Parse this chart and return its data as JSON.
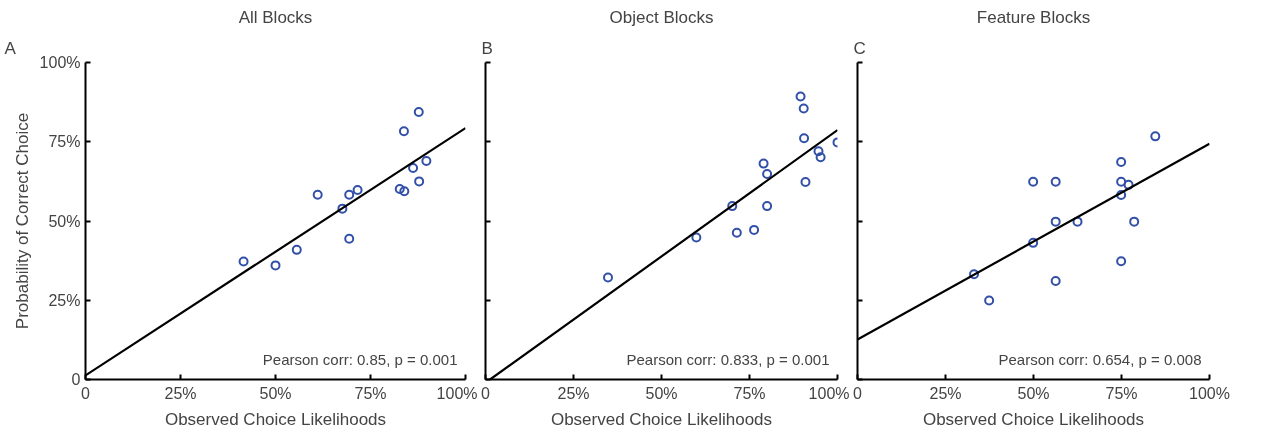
{
  "chart_data": [
    {
      "type": "scatter",
      "title": "All Blocks",
      "xlabel": "Observed Choice Likelihoods",
      "ylabel": "Probability of Correct Choice",
      "annotations": [
        "A",
        "Pearson corr: 0.85, p = 0.001"
      ],
      "xlim": [
        0,
        100
      ],
      "ylim": [
        0,
        100
      ],
      "xticks": [
        {
          "value": 0,
          "label": "0"
        },
        {
          "value": 25,
          "label": "25%"
        },
        {
          "value": 50,
          "label": "50%"
        },
        {
          "value": 75,
          "label": "75%"
        },
        {
          "value": 100,
          "label": "100%"
        }
      ],
      "yticks": [
        {
          "value": 0,
          "label": "0"
        },
        {
          "value": 25,
          "label": "25%"
        },
        {
          "value": 50,
          "label": "50%"
        },
        {
          "value": 75,
          "label": "75%"
        },
        {
          "value": 100,
          "label": "100%"
        }
      ],
      "marker": "circle",
      "series": [
        {
          "color": "#3350a8",
          "x": [
            41.6,
            50.0,
            55.6,
            61.1,
            67.6,
            69.4,
            71.6,
            69.4,
            82.7,
            83.9,
            83.8,
            87.7,
            86.2,
            89.7,
            87.8
          ],
          "values": [
            37.2,
            36.0,
            40.9,
            58.3,
            53.9,
            58.3,
            59.8,
            44.4,
            60.1,
            59.4,
            78.3,
            84.4,
            66.7,
            68.9,
            62.5
          ]
        },
        {
          "type": "line",
          "color": "#000000",
          "line_style": "solid",
          "marker": "none",
          "x": [
            0,
            100
          ],
          "values": [
            1.3,
            79.3
          ]
        }
      ]
    },
    {
      "type": "scatter",
      "title": "Object Blocks",
      "xlabel": "Observed Choice Likelihoods",
      "annotations": [
        "B",
        "Pearson corr: 0.833, p = 0.001"
      ],
      "xlim": [
        0,
        100
      ],
      "ylim": [
        0,
        100
      ],
      "tick_labels": "x",
      "xticks": [
        {
          "value": 0,
          "label": "0"
        },
        {
          "value": 25,
          "label": "25%"
        },
        {
          "value": 50,
          "label": "50%"
        },
        {
          "value": 75,
          "label": "75%"
        },
        {
          "value": 100,
          "label": "100%"
        }
      ],
      "yticks": [
        {
          "value": 0,
          "label": null
        },
        {
          "value": 25,
          "label": null
        },
        {
          "value": 50,
          "label": null
        },
        {
          "value": 75,
          "label": null
        },
        {
          "value": 100,
          "label": null
        }
      ],
      "marker": "circle",
      "series": [
        {
          "color": "#3350a8",
          "x": [
            34.8,
            59.9,
            70.1,
            71.4,
            76.3,
            79.0,
            80.0,
            80.0,
            89.5,
            90.4,
            90.5,
            90.9,
            94.6,
            95.2,
            100
          ],
          "values": [
            32.2,
            44.8,
            54.7,
            46.3,
            47.2,
            68.1,
            64.8,
            54.7,
            89.3,
            85.5,
            76.1,
            62.3,
            72.0,
            70.1,
            74.8
          ]
        },
        {
          "type": "line",
          "color": "#000000",
          "line_style": "solid",
          "marker": "none",
          "x": [
            1.3,
            100
          ],
          "values": [
            0,
            78.7
          ]
        }
      ]
    },
    {
      "type": "scatter",
      "title": "Feature Blocks",
      "xlabel": "Observed Choice Likelihoods",
      "annotations": [
        "C",
        "Pearson corr: 0.654, p = 0.008"
      ],
      "xlim": [
        0,
        100
      ],
      "ylim": [
        0,
        100
      ],
      "tick_labels": "x",
      "xticks": [
        {
          "value": 0,
          "label": "0"
        },
        {
          "value": 25,
          "label": "25%"
        },
        {
          "value": 50,
          "label": "50%"
        },
        {
          "value": 75,
          "label": "75%"
        },
        {
          "value": 100,
          "label": "100%"
        }
      ],
      "yticks": [
        {
          "value": 0,
          "label": null
        },
        {
          "value": 25,
          "label": null
        },
        {
          "value": 50,
          "label": null
        },
        {
          "value": 75,
          "label": null
        },
        {
          "value": 100,
          "label": null
        }
      ],
      "marker": "circle",
      "series": [
        {
          "color": "#3350a8",
          "x": [
            33.1,
            37.4,
            49.9,
            56.3,
            49.9,
            56.3,
            62.5,
            56.3,
            74.9,
            74.9,
            77.0,
            74.9,
            78.6,
            74.9,
            84.6
          ],
          "values": [
            33.2,
            24.9,
            62.4,
            62.4,
            43.1,
            49.8,
            49.8,
            31.1,
            68.6,
            62.4,
            61.4,
            58.2,
            49.8,
            37.3,
            76.7
          ]
        },
        {
          "type": "line",
          "color": "#000000",
          "line_style": "solid",
          "marker": "none",
          "x": [
            0,
            100
          ],
          "values": [
            12.6,
            74.4
          ]
        }
      ]
    }
  ]
}
